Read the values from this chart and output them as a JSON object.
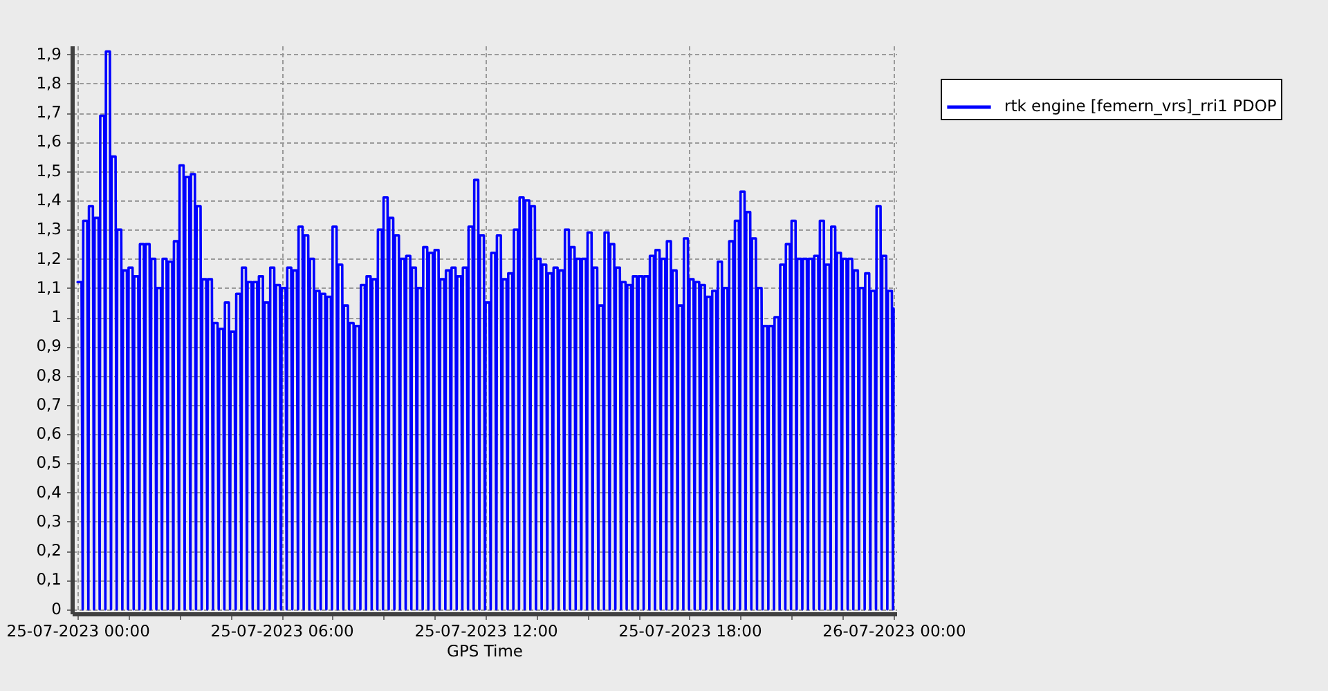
{
  "chart_data": {
    "type": "line",
    "xlabel": "GPS Time",
    "xlim": [
      "2023-07-24T23:50",
      "2023-07-26T00:05"
    ],
    "xticks": [
      {
        "value": "2023-07-25T00:00",
        "label": "25-07-2023 00:00"
      },
      {
        "value": "2023-07-25T01:30",
        "label": null
      },
      {
        "value": "2023-07-25T03:00",
        "label": null
      },
      {
        "value": "2023-07-25T04:30",
        "label": null
      },
      {
        "value": "2023-07-25T06:00",
        "label": "25-07-2023 06:00"
      },
      {
        "value": "2023-07-25T07:30",
        "label": null
      },
      {
        "value": "2023-07-25T09:00",
        "label": null
      },
      {
        "value": "2023-07-25T10:30",
        "label": null
      },
      {
        "value": "2023-07-25T12:00",
        "label": "25-07-2023 12:00"
      },
      {
        "value": "2023-07-25T13:30",
        "label": null
      },
      {
        "value": "2023-07-25T15:00",
        "label": null
      },
      {
        "value": "2023-07-25T16:30",
        "label": null
      },
      {
        "value": "2023-07-25T18:00",
        "label": "25-07-2023 18:00"
      },
      {
        "value": "2023-07-25T19:30",
        "label": null
      },
      {
        "value": "2023-07-25T21:00",
        "label": null
      },
      {
        "value": "2023-07-25T22:30",
        "label": null
      },
      {
        "value": "2023-07-26T00:00",
        "label": "26-07-2023 00:00"
      }
    ],
    "ylim": [
      -0.015,
      1.93
    ],
    "yticks": [
      0,
      {
        "value": 0.1,
        "label": "0,1"
      },
      {
        "value": 0.2,
        "label": "0,2"
      },
      {
        "value": 0.3,
        "label": "0,3"
      },
      {
        "value": 0.4,
        "label": "0,4"
      },
      {
        "value": 0.5,
        "label": "0,5"
      },
      {
        "value": 0.6,
        "label": "0,6"
      },
      {
        "value": 0.7,
        "label": "0,7"
      },
      {
        "value": 0.8,
        "label": "0,8"
      },
      {
        "value": 0.9,
        "label": "0,9"
      },
      1,
      {
        "value": 1.1,
        "label": "1,1"
      },
      {
        "value": 1.2,
        "label": "1,2"
      },
      {
        "value": 1.3,
        "label": "1,3"
      },
      {
        "value": 1.4,
        "label": "1,4"
      },
      {
        "value": 1.5,
        "label": "1,5"
      },
      {
        "value": 1.6,
        "label": "1,6"
      },
      {
        "value": 1.7,
        "label": "1,7"
      },
      {
        "value": 1.8,
        "label": "1,8"
      },
      {
        "value": 1.9,
        "label": "1,9"
      }
    ],
    "grid": true,
    "legend": "right",
    "x": [
      "2023-07-25T00:00",
      "2023-07-25T00:07",
      "2023-07-25T00:09",
      "2023-07-25T00:10",
      "2023-07-25T00:17",
      "2023-07-25T00:19",
      "2023-07-25T00:20",
      "2023-07-25T00:27",
      "2023-07-25T00:29",
      "2023-07-25T00:30",
      "2023-07-25T00:37",
      "2023-07-25T00:39",
      "2023-07-25T00:40",
      "2023-07-25T00:47",
      "2023-07-25T00:49",
      "2023-07-25T00:50",
      "2023-07-25T00:57",
      "2023-07-25T00:59",
      "2023-07-25T01:00",
      "2023-07-25T01:07",
      "2023-07-25T01:09",
      "2023-07-25T01:10",
      "2023-07-25T01:17",
      "2023-07-25T01:19",
      "2023-07-25T01:20",
      "2023-07-25T01:27",
      "2023-07-25T01:29",
      "2023-07-25T01:30",
      "2023-07-25T01:37",
      "2023-07-25T01:39",
      "2023-07-25T01:40",
      "2023-07-25T01:47",
      "2023-07-25T01:49",
      "2023-07-25T01:50",
      "2023-07-25T01:57",
      "2023-07-25T01:59",
      "2023-07-25T02:00",
      "2023-07-25T02:07",
      "2023-07-25T02:09",
      "2023-07-25T02:10",
      "2023-07-25T02:17",
      "2023-07-25T02:19",
      "2023-07-25T02:20",
      "2023-07-25T02:27",
      "2023-07-25T02:29",
      "2023-07-25T02:30",
      "2023-07-25T02:37",
      "2023-07-25T02:39",
      "2023-07-25T02:40",
      "2023-07-25T02:47",
      "2023-07-25T02:49",
      "2023-07-25T02:50",
      "2023-07-25T02:57",
      "2023-07-25T02:59",
      "2023-07-25T03:00",
      "2023-07-25T03:07",
      "2023-07-25T03:09",
      "2023-07-25T03:10",
      "2023-07-25T03:17",
      "2023-07-25T03:19",
      "2023-07-25T03:20",
      "2023-07-25T03:27",
      "2023-07-25T03:29",
      "2023-07-25T03:30",
      "2023-07-25T03:37",
      "2023-07-25T03:39",
      "2023-07-25T03:40",
      "2023-07-25T03:47",
      "2023-07-25T03:49",
      "2023-07-25T03:50",
      "2023-07-25T03:57",
      "2023-07-25T03:59",
      "2023-07-25T04:00",
      "2023-07-25T04:07",
      "2023-07-25T04:09",
      "2023-07-25T04:10",
      "2023-07-25T04:17",
      "2023-07-25T04:19",
      "2023-07-25T04:20",
      "2023-07-25T04:27",
      "2023-07-25T04:29",
      "2023-07-25T04:30",
      "2023-07-25T04:37",
      "2023-07-25T04:39",
      "2023-07-25T04:40",
      "2023-07-25T04:47",
      "2023-07-25T04:49",
      "2023-07-25T04:50",
      "2023-07-25T04:57",
      "2023-07-25T04:59",
      "2023-07-25T05:00",
      "2023-07-25T05:07",
      "2023-07-25T05:09",
      "2023-07-25T05:10",
      "2023-07-25T05:17",
      "2023-07-25T05:19",
      "2023-07-25T05:20",
      "2023-07-25T05:27",
      "2023-07-25T05:29",
      "2023-07-25T05:30",
      "2023-07-25T05:37",
      "2023-07-25T05:39",
      "2023-07-25T05:40",
      "2023-07-25T05:47",
      "2023-07-25T05:49",
      "2023-07-25T05:50",
      "2023-07-25T05:57",
      "2023-07-25T05:59",
      "2023-07-25T06:00",
      "2023-07-25T06:07",
      "2023-07-25T06:09",
      "2023-07-25T06:10",
      "2023-07-25T06:17",
      "2023-07-25T06:19",
      "2023-07-25T06:20",
      "2023-07-25T06:27",
      "2023-07-25T06:29",
      "2023-07-25T06:30",
      "2023-07-25T06:37",
      "2023-07-25T06:39",
      "2023-07-25T06:40",
      "2023-07-25T06:47",
      "2023-07-25T06:49",
      "2023-07-25T06:50",
      "2023-07-25T06:57",
      "2023-07-25T06:59",
      "2023-07-25T07:00",
      "2023-07-25T07:07",
      "2023-07-25T07:09",
      "2023-07-25T07:10",
      "2023-07-25T07:17",
      "2023-07-25T07:19",
      "2023-07-25T07:20",
      "2023-07-25T07:27",
      "2023-07-25T07:29",
      "2023-07-25T07:30",
      "2023-07-25T07:37",
      "2023-07-25T07:39",
      "2023-07-25T07:40",
      "2023-07-25T07:47",
      "2023-07-25T07:49",
      "2023-07-25T07:50",
      "2023-07-25T07:57",
      "2023-07-25T07:59",
      "2023-07-25T08:00",
      "2023-07-25T08:07",
      "2023-07-25T08:09",
      "2023-07-25T08:10",
      "2023-07-25T08:17",
      "2023-07-25T08:19",
      "2023-07-25T08:20",
      "2023-07-25T08:27",
      "2023-07-25T08:29",
      "2023-07-25T08:30",
      "2023-07-25T08:37",
      "2023-07-25T08:39",
      "2023-07-25T08:40",
      "2023-07-25T08:47",
      "2023-07-25T08:49",
      "2023-07-25T08:50",
      "2023-07-25T08:57",
      "2023-07-25T08:59",
      "2023-07-25T09:00",
      "2023-07-25T09:07",
      "2023-07-25T09:09",
      "2023-07-25T09:10",
      "2023-07-25T09:17",
      "2023-07-25T09:19",
      "2023-07-25T09:20",
      "2023-07-25T09:27",
      "2023-07-25T09:29",
      "2023-07-25T09:30",
      "2023-07-25T09:37",
      "2023-07-25T09:39",
      "2023-07-25T09:40",
      "2023-07-25T09:47",
      "2023-07-25T09:49",
      "2023-07-25T09:50",
      "2023-07-25T09:57",
      "2023-07-25T09:59",
      "2023-07-25T10:00",
      "2023-07-25T10:07",
      "2023-07-25T10:09",
      "2023-07-25T10:10",
      "2023-07-25T10:17",
      "2023-07-25T10:19",
      "2023-07-25T10:20",
      "2023-07-25T10:27",
      "2023-07-25T10:29",
      "2023-07-25T10:30",
      "2023-07-25T10:37",
      "2023-07-25T10:39",
      "2023-07-25T10:40",
      "2023-07-25T10:47",
      "2023-07-25T10:49",
      "2023-07-25T10:50",
      "2023-07-25T10:57",
      "2023-07-25T10:59",
      "2023-07-25T11:00",
      "2023-07-25T11:07",
      "2023-07-25T11:09",
      "2023-07-25T11:10",
      "2023-07-25T11:17",
      "2023-07-25T11:19",
      "2023-07-25T11:20",
      "2023-07-25T11:27",
      "2023-07-25T11:29",
      "2023-07-25T11:30",
      "2023-07-25T11:37",
      "2023-07-25T11:39",
      "2023-07-25T11:40",
      "2023-07-25T11:47",
      "2023-07-25T11:49",
      "2023-07-25T11:50",
      "2023-07-25T11:57",
      "2023-07-25T11:59",
      "2023-07-25T12:00",
      "2023-07-25T12:07",
      "2023-07-25T12:09",
      "2023-07-25T12:10",
      "2023-07-25T12:17",
      "2023-07-25T12:19",
      "2023-07-25T12:20",
      "2023-07-25T12:27",
      "2023-07-25T12:29",
      "2023-07-25T12:30",
      "2023-07-25T12:37",
      "2023-07-25T12:39",
      "2023-07-25T12:40",
      "2023-07-25T12:47",
      "2023-07-25T12:49",
      "2023-07-25T12:50",
      "2023-07-25T12:57",
      "2023-07-25T12:59",
      "2023-07-25T13:00",
      "2023-07-25T13:07",
      "2023-07-25T13:09",
      "2023-07-25T13:10",
      "2023-07-25T13:17",
      "2023-07-25T13:19",
      "2023-07-25T13:20",
      "2023-07-25T13:27",
      "2023-07-25T13:29",
      "2023-07-25T13:30",
      "2023-07-25T13:37",
      "2023-07-25T13:39",
      "2023-07-25T13:40",
      "2023-07-25T13:47",
      "2023-07-25T13:49",
      "2023-07-25T13:50",
      "2023-07-25T13:57",
      "2023-07-25T13:59",
      "2023-07-25T14:00",
      "2023-07-25T14:07",
      "2023-07-25T14:09",
      "2023-07-25T14:10",
      "2023-07-25T14:17",
      "2023-07-25T14:19",
      "2023-07-25T14:20",
      "2023-07-25T14:27",
      "2023-07-25T14:29",
      "2023-07-25T14:30",
      "2023-07-25T14:37",
      "2023-07-25T14:39",
      "2023-07-25T14:40",
      "2023-07-25T14:47",
      "2023-07-25T14:49",
      "2023-07-25T14:50",
      "2023-07-25T14:57",
      "2023-07-25T14:59",
      "2023-07-25T15:00",
      "2023-07-25T15:07",
      "2023-07-25T15:09",
      "2023-07-25T15:10",
      "2023-07-25T15:17",
      "2023-07-25T15:19",
      "2023-07-25T15:20",
      "2023-07-25T15:27",
      "2023-07-25T15:29",
      "2023-07-25T15:30",
      "2023-07-25T15:37",
      "2023-07-25T15:39",
      "2023-07-25T15:40",
      "2023-07-25T15:47",
      "2023-07-25T15:49",
      "2023-07-25T15:50",
      "2023-07-25T15:57",
      "2023-07-25T15:59",
      "2023-07-25T16:00",
      "2023-07-25T16:07",
      "2023-07-25T16:09",
      "2023-07-25T16:10",
      "2023-07-25T16:17",
      "2023-07-25T16:19",
      "2023-07-25T16:20",
      "2023-07-25T16:27",
      "2023-07-25T16:29",
      "2023-07-25T16:30",
      "2023-07-25T16:37",
      "2023-07-25T16:39",
      "2023-07-25T16:40",
      "2023-07-25T16:47",
      "2023-07-25T16:49",
      "2023-07-25T16:50",
      "2023-07-25T16:57",
      "2023-07-25T16:59",
      "2023-07-25T17:00",
      "2023-07-25T17:07",
      "2023-07-25T17:09",
      "2023-07-25T17:10",
      "2023-07-25T17:17",
      "2023-07-25T17:19",
      "2023-07-25T17:20",
      "2023-07-25T17:27",
      "2023-07-25T17:29",
      "2023-07-25T17:30",
      "2023-07-25T17:37",
      "2023-07-25T17:39",
      "2023-07-25T17:40",
      "2023-07-25T17:47",
      "2023-07-25T17:49",
      "2023-07-25T17:50",
      "2023-07-25T17:57",
      "2023-07-25T17:59",
      "2023-07-25T18:00",
      "2023-07-25T18:07",
      "2023-07-25T18:09",
      "2023-07-25T18:10",
      "2023-07-25T18:17",
      "2023-07-25T18:19",
      "2023-07-25T18:20",
      "2023-07-25T18:27",
      "2023-07-25T18:29",
      "2023-07-25T18:30",
      "2023-07-25T18:37",
      "2023-07-25T18:39",
      "2023-07-25T18:40",
      "2023-07-25T18:47",
      "2023-07-25T18:49",
      "2023-07-25T18:50",
      "2023-07-25T18:57",
      "2023-07-25T18:59",
      "2023-07-25T19:00",
      "2023-07-25T19:07",
      "2023-07-25T19:09",
      "2023-07-25T19:10",
      "2023-07-25T19:17",
      "2023-07-25T19:19",
      "2023-07-25T19:20",
      "2023-07-25T19:27",
      "2023-07-25T19:29",
      "2023-07-25T19:30",
      "2023-07-25T19:37",
      "2023-07-25T19:39",
      "2023-07-25T19:40",
      "2023-07-25T19:47",
      "2023-07-25T19:49",
      "2023-07-25T19:50",
      "2023-07-25T19:57",
      "2023-07-25T19:59",
      "2023-07-25T20:00",
      "2023-07-25T20:07",
      "2023-07-25T20:09",
      "2023-07-25T20:10",
      "2023-07-25T20:17",
      "2023-07-25T20:19",
      "2023-07-25T20:20",
      "2023-07-25T20:27",
      "2023-07-25T20:29",
      "2023-07-25T20:30",
      "2023-07-25T20:37",
      "2023-07-25T20:39",
      "2023-07-25T20:40",
      "2023-07-25T20:47",
      "2023-07-25T20:49",
      "2023-07-25T20:50",
      "2023-07-25T20:57",
      "2023-07-25T20:59",
      "2023-07-25T21:00",
      "2023-07-25T21:07",
      "2023-07-25T21:09",
      "2023-07-25T21:10",
      "2023-07-25T21:17",
      "2023-07-25T21:19",
      "2023-07-25T21:20",
      "2023-07-25T21:27",
      "2023-07-25T21:29",
      "2023-07-25T21:30",
      "2023-07-25T21:37",
      "2023-07-25T21:39",
      "2023-07-25T21:40",
      "2023-07-25T21:47",
      "2023-07-25T21:49",
      "2023-07-25T21:50",
      "2023-07-25T21:57",
      "2023-07-25T21:59",
      "2023-07-25T22:00",
      "2023-07-25T22:07",
      "2023-07-25T22:09",
      "2023-07-25T22:10",
      "2023-07-25T22:17",
      "2023-07-25T22:19",
      "2023-07-25T22:20",
      "2023-07-25T22:27",
      "2023-07-25T22:29",
      "2023-07-25T22:30",
      "2023-07-25T22:37",
      "2023-07-25T22:39",
      "2023-07-25T22:40",
      "2023-07-25T22:47",
      "2023-07-25T22:49",
      "2023-07-25T22:50",
      "2023-07-25T22:57",
      "2023-07-25T22:59",
      "2023-07-25T23:00",
      "2023-07-25T23:07",
      "2023-07-25T23:09",
      "2023-07-25T23:10",
      "2023-07-25T23:17",
      "2023-07-25T23:19",
      "2023-07-25T23:20",
      "2023-07-25T23:27",
      "2023-07-25T23:29",
      "2023-07-25T23:30",
      "2023-07-25T23:37",
      "2023-07-25T23:39",
      "2023-07-25T23:40",
      "2023-07-25T23:47",
      "2023-07-25T23:49",
      "2023-07-25T23:50",
      "2023-07-25T23:57",
      "2023-07-25T23:59",
      "2023-07-26T00:00"
    ],
    "series": [
      {
        "name": "rtk engine [femern_vrs]_rri1 PDOP",
        "color": "#0000ff",
        "values": [
          1.12,
          1.12,
          0,
          1.33,
          1.33,
          0,
          1.38,
          1.38,
          0,
          1.34,
          1.34,
          0,
          1.69,
          1.69,
          0,
          1.91,
          1.91,
          0,
          1.55,
          1.55,
          0,
          1.3,
          1.3,
          0,
          1.16,
          1.16,
          0,
          1.17,
          1.17,
          0,
          1.14,
          1.14,
          0,
          1.25,
          1.25,
          0,
          1.25,
          1.25,
          0,
          1.2,
          1.2,
          0,
          1.1,
          1.1,
          0,
          1.2,
          1.2,
          0,
          1.19,
          1.19,
          0,
          1.26,
          1.26,
          0,
          1.52,
          1.52,
          0,
          1.48,
          1.48,
          0,
          1.49,
          1.49,
          0,
          1.38,
          1.38,
          0,
          1.13,
          1.13,
          0,
          1.13,
          1.13,
          0,
          0.98,
          0.98,
          0,
          0.96,
          0.96,
          0,
          1.05,
          1.05,
          0,
          0.95,
          0.95,
          0,
          1.08,
          1.08,
          0,
          1.17,
          1.17,
          0,
          1.12,
          1.12,
          0,
          1.12,
          1.12,
          0,
          1.14,
          1.14,
          0,
          1.05,
          1.05,
          0,
          1.17,
          1.17,
          0,
          1.11,
          1.11,
          0,
          1.1,
          1.1,
          0,
          1.17,
          1.17,
          0,
          1.16,
          1.16,
          0,
          1.31,
          1.31,
          0,
          1.28,
          1.28,
          0,
          1.2,
          1.2,
          0,
          1.09,
          1.09,
          0,
          1.08,
          1.08,
          0,
          1.07,
          1.07,
          0,
          1.31,
          1.31,
          0,
          1.18,
          1.18,
          0,
          1.04,
          1.04,
          0,
          0.98,
          0.98,
          0,
          0.97,
          0.97,
          0,
          1.11,
          1.11,
          0,
          1.14,
          1.14,
          0,
          1.13,
          1.13,
          0,
          1.3,
          1.3,
          0,
          1.41,
          1.41,
          0,
          1.34,
          1.34,
          0,
          1.28,
          1.28,
          0,
          1.2,
          1.2,
          0,
          1.21,
          1.21,
          0,
          1.17,
          1.17,
          0,
          1.1,
          1.1,
          0,
          1.24,
          1.24,
          0,
          1.22,
          1.22,
          0,
          1.23,
          1.23,
          0,
          1.13,
          1.13,
          0,
          1.16,
          1.16,
          0,
          1.17,
          1.17,
          0,
          1.14,
          1.14,
          0,
          1.17,
          1.17,
          0,
          1.31,
          1.31,
          0,
          1.47,
          1.47,
          0,
          1.28,
          1.28,
          0,
          1.05,
          1.05,
          0,
          1.22,
          1.22,
          0,
          1.28,
          1.28,
          0,
          1.13,
          1.13,
          0,
          1.15,
          1.15,
          0,
          1.3,
          1.3,
          0,
          1.41,
          1.41,
          0,
          1.4,
          1.4,
          0,
          1.38,
          1.38,
          0,
          1.2,
          1.2,
          0,
          1.18,
          1.18,
          0,
          1.15,
          1.15,
          0,
          1.17,
          1.17,
          0,
          1.16,
          1.16,
          0,
          1.3,
          1.3,
          0,
          1.24,
          1.24,
          0,
          1.2,
          1.2,
          0,
          1.2,
          1.2,
          0,
          1.29,
          1.29,
          0,
          1.17,
          1.17,
          0,
          1.04,
          1.04,
          0,
          1.29,
          1.29,
          0,
          1.25,
          1.25,
          0,
          1.17,
          1.17,
          0,
          1.12,
          1.12,
          0,
          1.11,
          1.11,
          0,
          1.14,
          1.14,
          0,
          1.14,
          1.14,
          0,
          1.14,
          1.14,
          0,
          1.21,
          1.21,
          0,
          1.23,
          1.23,
          0,
          1.2,
          1.2,
          0,
          1.26,
          1.26,
          0,
          1.16,
          1.16,
          0,
          1.04,
          1.04,
          0,
          1.27,
          1.27,
          0,
          1.13,
          1.13,
          0,
          1.12,
          1.12,
          0,
          1.11,
          1.11,
          0,
          1.07,
          1.07,
          0,
          1.09,
          1.09,
          0,
          1.19,
          1.19,
          0,
          1.1,
          1.1,
          0,
          1.26,
          1.26,
          0,
          1.33,
          1.33,
          0,
          1.43,
          1.43,
          0,
          1.36,
          1.36,
          0,
          1.27,
          1.27,
          0,
          1.1,
          1.1,
          0,
          0.97,
          0.97,
          0,
          0.97,
          0.97,
          0,
          1.0,
          1.0,
          0,
          1.18,
          1.18,
          0,
          1.25,
          1.25,
          0,
          1.33,
          1.33,
          0,
          1.2,
          1.2,
          0,
          1.2,
          1.2,
          0,
          1.2,
          1.2,
          0,
          1.21,
          1.21,
          0,
          1.33,
          1.33,
          0,
          1.18,
          1.18,
          0,
          1.31,
          1.31,
          0,
          1.22,
          1.22,
          0,
          1.2,
          1.2,
          0,
          1.2,
          1.2,
          0,
          1.16,
          1.16,
          0,
          1.1,
          1.1,
          0,
          1.15,
          1.15,
          0,
          1.09,
          1.09,
          0,
          1.38,
          1.38,
          0,
          1.21,
          1.21,
          0,
          1.09,
          1.09,
          0,
          1.03
        ]
      }
    ]
  }
}
